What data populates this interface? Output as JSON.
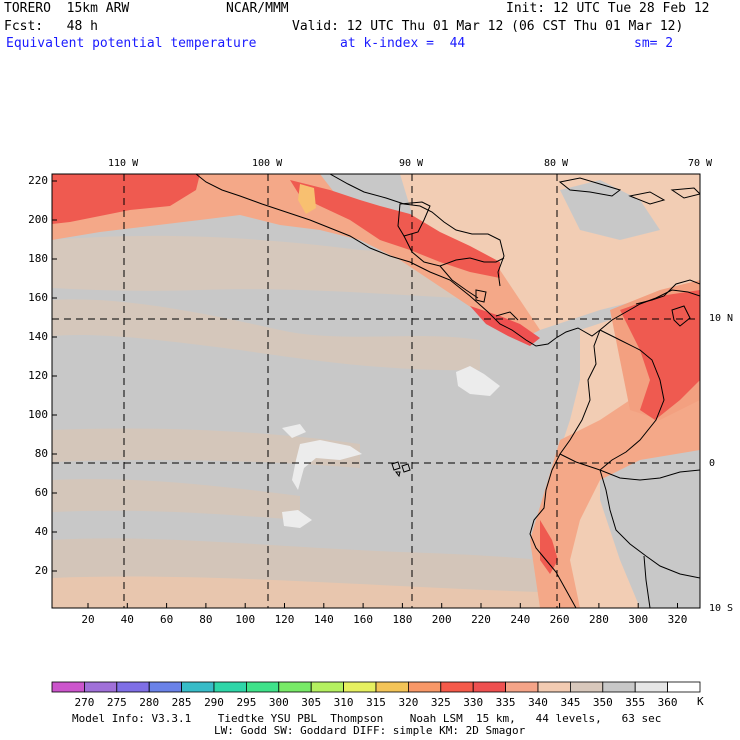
{
  "header": {
    "model": "TORERO  15km ARW",
    "org": "NCAR/MMM",
    "init": "Init: 12 UTC Tue 28 Feb 12",
    "fcst": "Fcst:   48 h",
    "valid": "Valid: 12 UTC Thu 01 Mar 12 (06 CST Thu 01 Mar 12)",
    "field": "Equivalent potential temperature",
    "level": "at k-index =  44",
    "smooth": "sm= 2"
  },
  "map": {
    "lon_labels": [
      "110 W",
      "100 W",
      "90 W",
      "80 W",
      "70 W"
    ],
    "lat_labels": [
      "10 N",
      "0",
      "10 S"
    ],
    "y_ticks": [
      "220",
      "200",
      "180",
      "160",
      "140",
      "120",
      "100",
      "80",
      "60",
      "40",
      "20"
    ],
    "x_ticks": [
      "20",
      "40",
      "60",
      "80",
      "100",
      "120",
      "140",
      "160",
      "180",
      "200",
      "220",
      "240",
      "260",
      "280",
      "300",
      "320"
    ]
  },
  "colorbar": {
    "labels": [
      "270",
      "275",
      "280",
      "285",
      "290",
      "295",
      "300",
      "305",
      "310",
      "315",
      "320",
      "325",
      "330",
      "335",
      "340",
      "345",
      "350",
      "355",
      "360"
    ],
    "unit": "K",
    "colors": [
      "#cc55cc",
      "#a070d8",
      "#7f6fe6",
      "#6a82e8",
      "#38bcc8",
      "#2ed6a8",
      "#3fe28a",
      "#78ea68",
      "#b4f060",
      "#e6f060",
      "#f3c458",
      "#f89868",
      "#f55a4a",
      "#ee5050",
      "#f5a488",
      "#f2cbb2",
      "#d8c8bc",
      "#c8c8c8",
      "#e6e6e6",
      "#ffffff"
    ]
  },
  "footer": {
    "line1": "Model Info: V3.3.1    Tiedtke YSU PBL  Thompson    Noah LSM  15 km,   44 levels,   63 sec",
    "line2": "LW: Godd SW: Goddard DIFF: simple KM: 2D Smagor"
  },
  "palette": {
    "ocean": "#c8c8c8",
    "ocean_band": "#d8cabd",
    "warm_land": "#f2cdb4",
    "salmon": "#f4a888",
    "red": "#ef5a50",
    "white": "#f2f2f2"
  }
}
